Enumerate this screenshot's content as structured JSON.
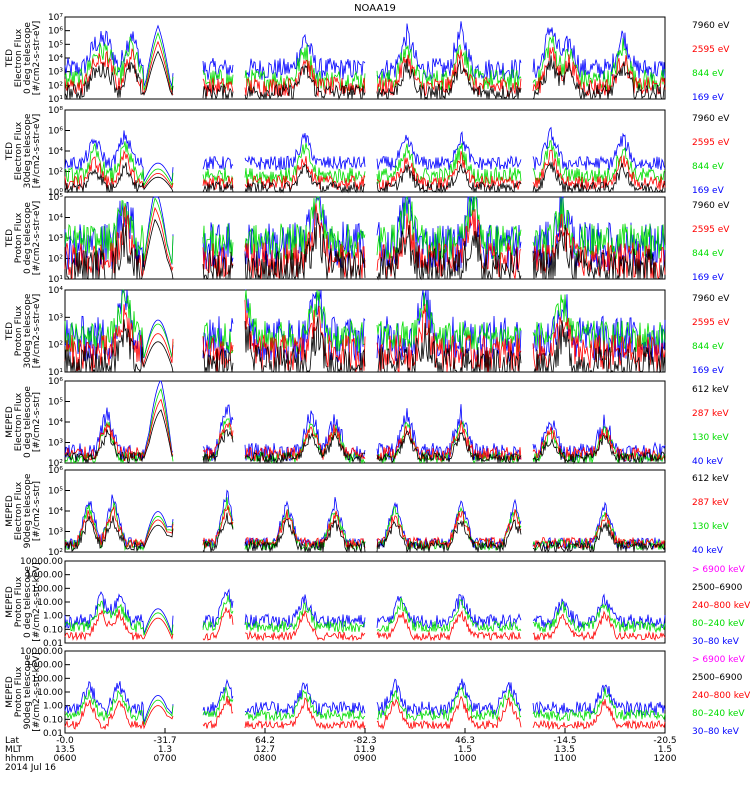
{
  "title": "NOAA19",
  "x_axis": {
    "row_labels": [
      "Lat",
      "MLT",
      "hhmm",
      "2014 Jul 16"
    ],
    "ticks": [
      {
        "lat": "-0.0",
        "mlt": "13.5",
        "time": "0600"
      },
      {
        "lat": "-31.7",
        "mlt": "1.3",
        "time": "0700"
      },
      {
        "lat": "64.2",
        "mlt": "12.7",
        "time": "0800"
      },
      {
        "lat": "-82.3",
        "mlt": "11.9",
        "time": "0900"
      },
      {
        "lat": "46.3",
        "mlt": "1.5",
        "time": "1000"
      },
      {
        "lat": "-14.5",
        "mlt": "13.5",
        "time": "1100"
      },
      {
        "lat": "-20.5",
        "mlt": "1.5",
        "time": "1200"
      }
    ]
  },
  "colors": {
    "black": "#000000",
    "red": "#ff0000",
    "green": "#00dd00",
    "blue": "#0000ff",
    "magenta": "#ff00ff"
  },
  "chart_data": [
    {
      "type": "line",
      "yscale": "log",
      "ylabel": [
        "TED",
        "Electron Flux",
        "0 deg telescope",
        "[#/cm2-s-str-eV]"
      ],
      "yticks": [
        "10¹",
        "10²",
        "10³",
        "10⁴",
        "10⁵",
        "10⁶",
        "10⁷"
      ],
      "ylim_exp": [
        1,
        7
      ],
      "series": [
        {
          "name": "7960 eV",
          "color": "black",
          "base": 0.5,
          "var": 0.6
        },
        {
          "name": "2595 eV",
          "color": "red",
          "base": 0.9,
          "var": 0.7
        },
        {
          "name": "844 eV",
          "color": "green",
          "base": 1.4,
          "var": 0.8
        },
        {
          "name": "169 eV",
          "color": "blue",
          "base": 2.2,
          "var": 0.8
        }
      ],
      "spikes": [
        [
          0.05,
          3.2
        ],
        [
          0.07,
          3.6
        ],
        [
          0.11,
          4.2
        ],
        [
          0.155,
          3.8
        ],
        [
          0.4,
          3.8
        ],
        [
          0.57,
          4.0
        ],
        [
          0.66,
          4.2
        ],
        [
          0.81,
          4.8
        ],
        [
          0.84,
          3.4
        ],
        [
          0.93,
          4.0
        ]
      ],
      "arch": [
        0.13,
        0.18,
        2.6
      ]
    },
    {
      "type": "line",
      "yscale": "log",
      "ylabel": [
        "TED",
        "Electron Flux",
        "30deg telescope",
        "[#/cm2-s-str-eV]"
      ],
      "yticks": [
        "10⁰",
        "10²",
        "10⁴",
        "10⁶",
        "10⁸"
      ],
      "ylim_exp": [
        0,
        8
      ],
      "series": [
        {
          "name": "7960 eV",
          "color": "black",
          "base": 0.4,
          "var": 0.6
        },
        {
          "name": "2595 eV",
          "color": "red",
          "base": 0.9,
          "var": 0.7
        },
        {
          "name": "844 eV",
          "color": "green",
          "base": 1.6,
          "var": 0.8
        },
        {
          "name": "169 eV",
          "color": "blue",
          "base": 2.8,
          "var": 0.7
        }
      ],
      "spikes": [
        [
          0.05,
          4.0
        ],
        [
          0.1,
          4.6
        ],
        [
          0.4,
          4.4
        ],
        [
          0.57,
          4.0
        ],
        [
          0.66,
          4.4
        ],
        [
          0.81,
          4.8
        ],
        [
          0.93,
          4.2
        ]
      ],
      "arch": [
        0.13,
        0.18,
        2.2
      ]
    },
    {
      "type": "line",
      "yscale": "log",
      "ylabel": [
        "TED",
        "Proton Flux",
        "0 deg telescope",
        "[#/cm2-s-str-eV]"
      ],
      "yticks": [
        "10¹",
        "10²",
        "10³",
        "10⁴",
        "10⁵"
      ],
      "ylim_exp": [
        1,
        5
      ],
      "series": [
        {
          "name": "7960 eV",
          "color": "black",
          "base": 0.5,
          "var": 1.0
        },
        {
          "name": "2595 eV",
          "color": "red",
          "base": 0.9,
          "var": 0.9
        },
        {
          "name": "844 eV",
          "color": "green",
          "base": 1.8,
          "var": 0.9
        },
        {
          "name": "169 eV",
          "color": "blue",
          "base": 1.6,
          "var": 1.2
        }
      ],
      "spikes": [
        [
          0.1,
          3.4
        ],
        [
          0.15,
          3.0
        ],
        [
          0.42,
          3.8
        ],
        [
          0.57,
          3.4
        ],
        [
          0.68,
          3.8
        ],
        [
          0.83,
          3.2
        ]
      ],
      "arch": [
        0.13,
        0.18,
        2.4
      ]
    },
    {
      "type": "line",
      "yscale": "log",
      "ylabel": [
        "TED",
        "Proton Flux",
        "30deg telescope",
        "[#/cm2-s-str-eV]"
      ],
      "yticks": [
        "10¹",
        "10²",
        "10³",
        "10⁴"
      ],
      "ylim_exp": [
        1,
        4.5
      ],
      "series": [
        {
          "name": "7960 eV",
          "color": "black",
          "base": 0.3,
          "var": 0.8
        },
        {
          "name": "2595 eV",
          "color": "red",
          "base": 0.8,
          "var": 0.8
        },
        {
          "name": "844 eV",
          "color": "green",
          "base": 1.5,
          "var": 0.7
        },
        {
          "name": "169 eV",
          "color": "blue",
          "base": 1.4,
          "var": 1.0
        }
      ],
      "spikes": [
        [
          0.1,
          3.0
        ],
        [
          0.3,
          2.8
        ],
        [
          0.42,
          3.0
        ],
        [
          0.6,
          2.6
        ],
        [
          0.83,
          2.6
        ]
      ],
      "arch": [
        0.13,
        0.18,
        2.0
      ]
    },
    {
      "type": "line",
      "yscale": "log",
      "ylabel": [
        "MEPED",
        "Electron Flux",
        "0 deg telescope",
        "[#/cm2-s-str]"
      ],
      "yticks": [
        "10²",
        "10³",
        "10⁴",
        "10⁵",
        "10⁶"
      ],
      "ylim_exp": [
        1.5,
        6
      ],
      "series": [
        {
          "name": "612 keV",
          "color": "black",
          "base": 0.3,
          "var": 0.3
        },
        {
          "name": "287 keV",
          "color": "red",
          "base": 0.5,
          "var": 0.4
        },
        {
          "name": "130 keV",
          "color": "green",
          "base": 0.3,
          "var": 0.3
        },
        {
          "name": "40 keV",
          "color": "blue",
          "base": 0.6,
          "var": 0.5
        }
      ],
      "spikes": [
        [
          0.07,
          2.8
        ],
        [
          0.16,
          2.6
        ],
        [
          0.27,
          3.2
        ],
        [
          0.41,
          2.8
        ],
        [
          0.45,
          2.4
        ],
        [
          0.57,
          2.6
        ],
        [
          0.66,
          2.8
        ],
        [
          0.81,
          2.2
        ],
        [
          0.9,
          2.4
        ]
      ],
      "arch": [
        0.13,
        0.18,
        2.8
      ]
    },
    {
      "type": "line",
      "yscale": "log",
      "ylabel": [
        "MEPED",
        "Electron Flux",
        "90deg telescope",
        "[#/cm2-s-str]"
      ],
      "yticks": [
        "10²",
        "10³",
        "10⁴",
        "10⁵",
        "10⁶"
      ],
      "ylim_exp": [
        1.5,
        6
      ],
      "series": [
        {
          "name": "612 keV",
          "color": "black",
          "base": 0.3,
          "var": 0.3
        },
        {
          "name": "287 keV",
          "color": "red",
          "base": 0.5,
          "var": 0.3
        },
        {
          "name": "130 keV",
          "color": "green",
          "base": 0.4,
          "var": 0.3
        },
        {
          "name": "40 keV",
          "color": "blue",
          "base": 0.5,
          "var": 0.3
        }
      ],
      "spikes": [
        [
          0.04,
          3.0
        ],
        [
          0.08,
          3.2
        ],
        [
          0.19,
          3.0
        ],
        [
          0.27,
          3.4
        ],
        [
          0.37,
          2.8
        ],
        [
          0.45,
          2.8
        ],
        [
          0.55,
          2.8
        ],
        [
          0.66,
          3.0
        ],
        [
          0.75,
          2.8
        ],
        [
          0.9,
          2.6
        ]
      ],
      "arch": [
        0.13,
        0.18,
        2.3
      ]
    },
    {
      "type": "line",
      "yscale": "log",
      "ylabel": [
        "MEPED",
        "Proton Flux",
        "0 deg telescope",
        "[#/cm2-s-str-keV]"
      ],
      "yticks": [
        "0.01",
        "0.10",
        "1.00",
        "10.00",
        "100.00",
        "1000.00",
        "10000.00"
      ],
      "ylim_exp": [
        -2,
        4
      ],
      "series": [
        {
          "name": "> 6900 keV",
          "color": "magenta",
          "base": 0.0,
          "var": 0.0
        },
        {
          "name": "2500–6900",
          "color": "black",
          "base": 0.0,
          "var": 0.0
        },
        {
          "name": "240–800 keV",
          "color": "red",
          "base": 0.5,
          "var": 0.3
        },
        {
          "name": "80–240 keV",
          "color": "green",
          "base": 1.2,
          "var": 0.4
        },
        {
          "name": "30–80 keV",
          "color": "blue",
          "base": 1.6,
          "var": 0.5
        }
      ],
      "spikes": [
        [
          0.06,
          2.8
        ],
        [
          0.09,
          2.6
        ],
        [
          0.27,
          3.2
        ],
        [
          0.4,
          2.6
        ],
        [
          0.56,
          2.8
        ],
        [
          0.66,
          2.8
        ],
        [
          0.83,
          2.4
        ],
        [
          0.9,
          2.6
        ]
      ],
      "arch": [
        0.13,
        0.18,
        2.2
      ]
    },
    {
      "type": "line",
      "yscale": "log",
      "ylabel": [
        "MEPED",
        "Proton Flux",
        "90deg telescope",
        "[#/cm2-s-str-keV]"
      ],
      "yticks": [
        "0.01",
        "0.10",
        "1.00",
        "10.00",
        "100.00",
        "1000.00",
        "10000.00"
      ],
      "ylim_exp": [
        -2,
        4
      ],
      "series": [
        {
          "name": "> 6900 keV",
          "color": "magenta",
          "base": 0.0,
          "var": 0.0
        },
        {
          "name": "2500–6900",
          "color": "black",
          "base": 0.0,
          "var": 0.0
        },
        {
          "name": "240–800 keV",
          "color": "red",
          "base": 0.6,
          "var": 0.3
        },
        {
          "name": "80–240 keV",
          "color": "green",
          "base": 1.3,
          "var": 0.4
        },
        {
          "name": "30–80 keV",
          "color": "blue",
          "base": 1.8,
          "var": 0.5
        }
      ],
      "spikes": [
        [
          0.04,
          2.8
        ],
        [
          0.09,
          2.8
        ],
        [
          0.19,
          2.6
        ],
        [
          0.27,
          3.0
        ],
        [
          0.4,
          2.8
        ],
        [
          0.55,
          2.8
        ],
        [
          0.66,
          3.0
        ],
        [
          0.74,
          2.8
        ],
        [
          0.9,
          2.8
        ]
      ],
      "arch": [
        0.13,
        0.18,
        2.4
      ]
    }
  ]
}
